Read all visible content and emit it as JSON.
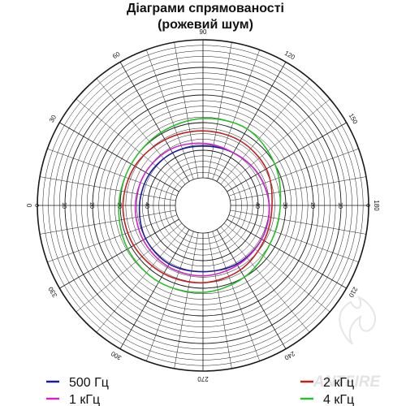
{
  "chart_data": {
    "type": "polar-line",
    "title": [
      "Діаграми спрямованості",
      "(рожевий шум)"
    ],
    "angle_labels": [
      "0",
      "30",
      "60",
      "90",
      "120",
      "150",
      "180",
      "210",
      "240",
      "270",
      "300",
      "330"
    ],
    "radial_axis": {
      "labels": [
        "0",
        "10",
        "20",
        "30",
        "40"
      ],
      "rmin": 0,
      "rmax": 50,
      "direction": "inward"
    },
    "grid": true,
    "legend_position": "bottom",
    "series": [
      {
        "name": "500 Гц",
        "color": "#1a1aa6",
        "angles": [
          0,
          30,
          60,
          90,
          120,
          150,
          180,
          210,
          240,
          270,
          300,
          330
        ],
        "values": [
          37,
          37.5,
          38,
          38.5,
          38,
          37,
          36,
          35.5,
          35.5,
          36,
          35.5,
          36
        ]
      },
      {
        "name": "1 кГц",
        "color": "#d026c8",
        "angles": [
          0,
          30,
          60,
          90,
          120,
          150,
          180,
          210,
          240,
          270,
          300,
          330
        ],
        "values": [
          35.5,
          36,
          36.5,
          37.5,
          38,
          37,
          36,
          35.5,
          35,
          34.5,
          34.5,
          35
        ]
      },
      {
        "name": "2 кГц",
        "color": "#c41e1e",
        "angles": [
          0,
          30,
          60,
          90,
          120,
          150,
          180,
          210,
          240,
          270,
          300,
          330
        ],
        "values": [
          31,
          31.5,
          32.5,
          33,
          33,
          33.5,
          35,
          34.5,
          33,
          32,
          31.5,
          31
        ]
      },
      {
        "name": "4 кГц",
        "color": "#2ac02a",
        "angles": [
          0,
          30,
          60,
          90,
          120,
          150,
          180,
          210,
          240,
          270,
          300,
          330
        ],
        "values": [
          29.5,
          30,
          29.5,
          28.5,
          28,
          30,
          32,
          32,
          30,
          28.5,
          28,
          28.5
        ]
      }
    ]
  },
  "watermark": {
    "text": "ANTFIRE",
    "color": "#e3e3e3"
  }
}
